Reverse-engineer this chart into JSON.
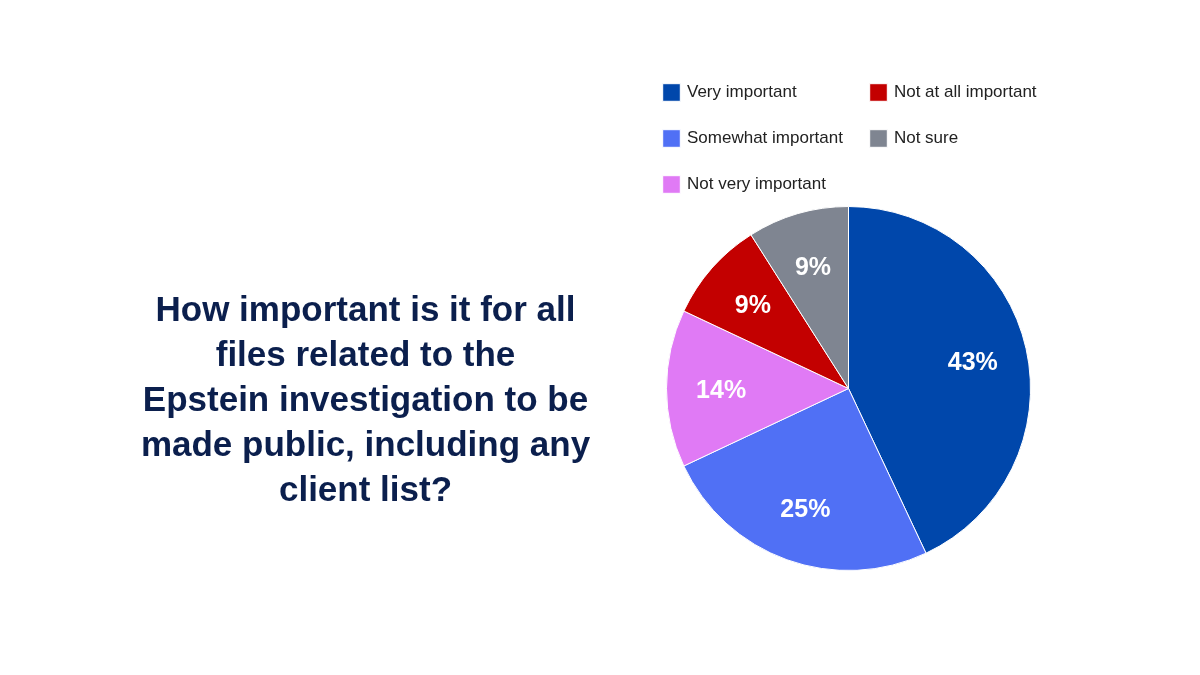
{
  "chart_data": {
    "type": "pie",
    "title": "How important is it for all files related to the Epstein investigation to be made public, including any client list?",
    "categories": [
      "Very important",
      "Somewhat important",
      "Not very important",
      "Not at all important",
      "Not sure"
    ],
    "values": [
      43,
      25,
      14,
      9,
      9
    ],
    "colors": [
      "#0047ab",
      "#5070f5",
      "#e07af5",
      "#c30000",
      "#7f8591"
    ],
    "value_labels": [
      "43%",
      "25%",
      "14%",
      "9%",
      "9%"
    ],
    "legend": "top"
  }
}
